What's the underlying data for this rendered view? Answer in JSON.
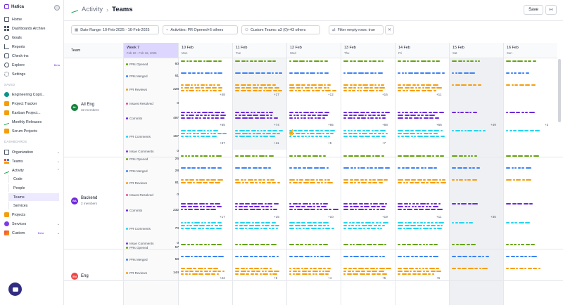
{
  "app": {
    "name": "Hatica"
  },
  "sidebar": {
    "top_items": [
      {
        "label": "Home",
        "icon": "home-icon"
      },
      {
        "label": "Dashboards Archive",
        "icon": "grid-icon"
      },
      {
        "label": "Goals",
        "icon": "target-icon"
      },
      {
        "label": "Reports",
        "icon": "chart-icon"
      },
      {
        "label": "Check-ins",
        "icon": "check-icon"
      },
      {
        "label": "Explore",
        "icon": "explore-icon",
        "badge": "Beta"
      },
      {
        "label": "Settings",
        "icon": "gear-icon"
      }
    ],
    "saved_label": "SAVED",
    "saved_items": [
      {
        "label": "Engineering Copil...",
        "icon": "dashboard-icon"
      },
      {
        "label": "Project Tracker",
        "icon": "dashboard-icon"
      },
      {
        "label": "Kanban Project...",
        "icon": "dashboard-icon"
      },
      {
        "label": "Monthly Releases",
        "icon": "activity-icon"
      },
      {
        "label": "Scrum Projects",
        "icon": "dashboard-icon"
      }
    ],
    "dashboards_label": "DASHBOARDS",
    "dash_items": [
      {
        "label": "Organization",
        "icon": "org-icon"
      },
      {
        "label": "Teams",
        "icon": "teams-icon"
      },
      {
        "label": "Activity",
        "icon": "activity-icon"
      }
    ],
    "activity_sub": [
      "Code",
      "People",
      "Teams",
      "Services"
    ],
    "bottom_items": [
      {
        "label": "Projects",
        "icon": "projects-icon"
      },
      {
        "label": "Services",
        "icon": "services-icon"
      },
      {
        "label": "Custom",
        "icon": "custom-icon",
        "badge": "Beta"
      }
    ]
  },
  "header": {
    "parent": "Activity",
    "current": "Teams",
    "save_label": "Save"
  },
  "filters": {
    "date_range": "Date Range: 10-Feb-2025 - 16-Feb-2025",
    "activities": "Activities: PR Opened+6 others",
    "custom_teams": "Custom Teams: a3 (0)+43 others",
    "filter_empty": "Filter empty rows: true"
  },
  "grid": {
    "team_col": "Team",
    "week": {
      "title": "Week 7",
      "range": "Feb 10 - Feb 16, 2025"
    },
    "days": [
      {
        "date": "10 Feb",
        "dow": "Mon"
      },
      {
        "date": "11 Feb",
        "dow": "Tue"
      },
      {
        "date": "12 Feb",
        "dow": "Wed"
      },
      {
        "date": "13 Feb",
        "dow": "Thu"
      },
      {
        "date": "14 Feb",
        "dow": "Fri"
      },
      {
        "date": "15 Feb",
        "dow": "Sat"
      },
      {
        "date": "16 Feb",
        "dow": "Sun"
      }
    ],
    "teams": [
      {
        "initials": "AL",
        "name": "All Eng",
        "members": "32 members",
        "color": "#15803d",
        "metrics": [
          {
            "name": "PRs Opened",
            "value": "60",
            "color": "#65a30d",
            "overflow": [
              "",
              "",
              "",
              "",
              "",
              "",
              ""
            ]
          },
          {
            "name": "PRs Merged",
            "value": "61",
            "color": "#3b82f6",
            "overflow": [
              "",
              "",
              "",
              "",
              "",
              "",
              ""
            ]
          },
          {
            "name": "PR Reviews",
            "value": "228",
            "color": "#f59e0b",
            "overflow": [
              "+48",
              "+17",
              "+12",
              "+16",
              "+11",
              "",
              ""
            ]
          },
          {
            "name": "Issues Resolved",
            "value": "0",
            "color": "#ec4899",
            "overflow": [
              "",
              "",
              "",
              "",
              "",
              "",
              ""
            ]
          },
          {
            "name": "Commits",
            "value": "497",
            "color": "#6d28d9",
            "overflow": [
              "+55",
              "+74",
              "+65",
              "+58",
              "+56",
              "+49",
              "+2"
            ]
          },
          {
            "name": "PR Comments",
            "value": "167",
            "color": "#22d3ee",
            "overflow": [
              "+37",
              "+11",
              "+5",
              "+7",
              "",
              "",
              ""
            ]
          },
          {
            "name": "Issue Comments",
            "value": "0",
            "color": "#7c3aed",
            "overflow": [
              "",
              "",
              "",
              "",
              "",
              "",
              ""
            ]
          }
        ]
      },
      {
        "initials": "BA",
        "name": "Backend",
        "members": "2 members",
        "color": "#6d28d9",
        "metrics": [
          {
            "name": "PRs Opened",
            "value": "26",
            "color": "#65a30d",
            "overflow": [
              "",
              "",
              "",
              "",
              "",
              "",
              ""
            ]
          },
          {
            "name": "PRs Merged",
            "value": "28",
            "color": "#3b82f6",
            "overflow": [
              "",
              "",
              "",
              "",
              "",
              "",
              ""
            ]
          },
          {
            "name": "PR Reviews",
            "value": "81",
            "color": "#f59e0b",
            "overflow": [
              "",
              "",
              "",
              "",
              "",
              "",
              ""
            ]
          },
          {
            "name": "Issues Resolved",
            "value": "0",
            "color": "#ec4899",
            "overflow": [
              "",
              "",
              "",
              "",
              "",
              "",
              ""
            ]
          },
          {
            "name": "Commits",
            "value": "232",
            "color": "#6d28d9",
            "overflow": [
              "+17",
              "+15",
              "+10",
              "+19",
              "+11",
              "+35",
              ""
            ]
          },
          {
            "name": "PR Comments",
            "value": "70",
            "color": "#22d3ee",
            "overflow": [
              "",
              "",
              "",
              "",
              "",
              "",
              ""
            ]
          },
          {
            "name": "Issue Comments",
            "value": "0",
            "color": "#7c3aed",
            "overflow": [
              "",
              "",
              "",
              "",
              "",
              "",
              ""
            ]
          }
        ]
      },
      {
        "initials": "EN",
        "name": "Eng",
        "members": "",
        "color": "#ef4444",
        "metrics": [
          {
            "name": "PRs Opened",
            "value": "57",
            "color": "#65a30d",
            "overflow": [
              "",
              "",
              "",
              "",
              "",
              "",
              ""
            ]
          },
          {
            "name": "PRs Merged",
            "value": "58",
            "color": "#3b82f6",
            "overflow": [
              "",
              "",
              "",
              "",
              "",
              "",
              ""
            ]
          },
          {
            "name": "PR Reviews",
            "value": "144",
            "color": "#f59e0b",
            "overflow": [
              "+22",
              "+5",
              "+4",
              "+5",
              "+5",
              "",
              ""
            ]
          }
        ]
      }
    ]
  }
}
